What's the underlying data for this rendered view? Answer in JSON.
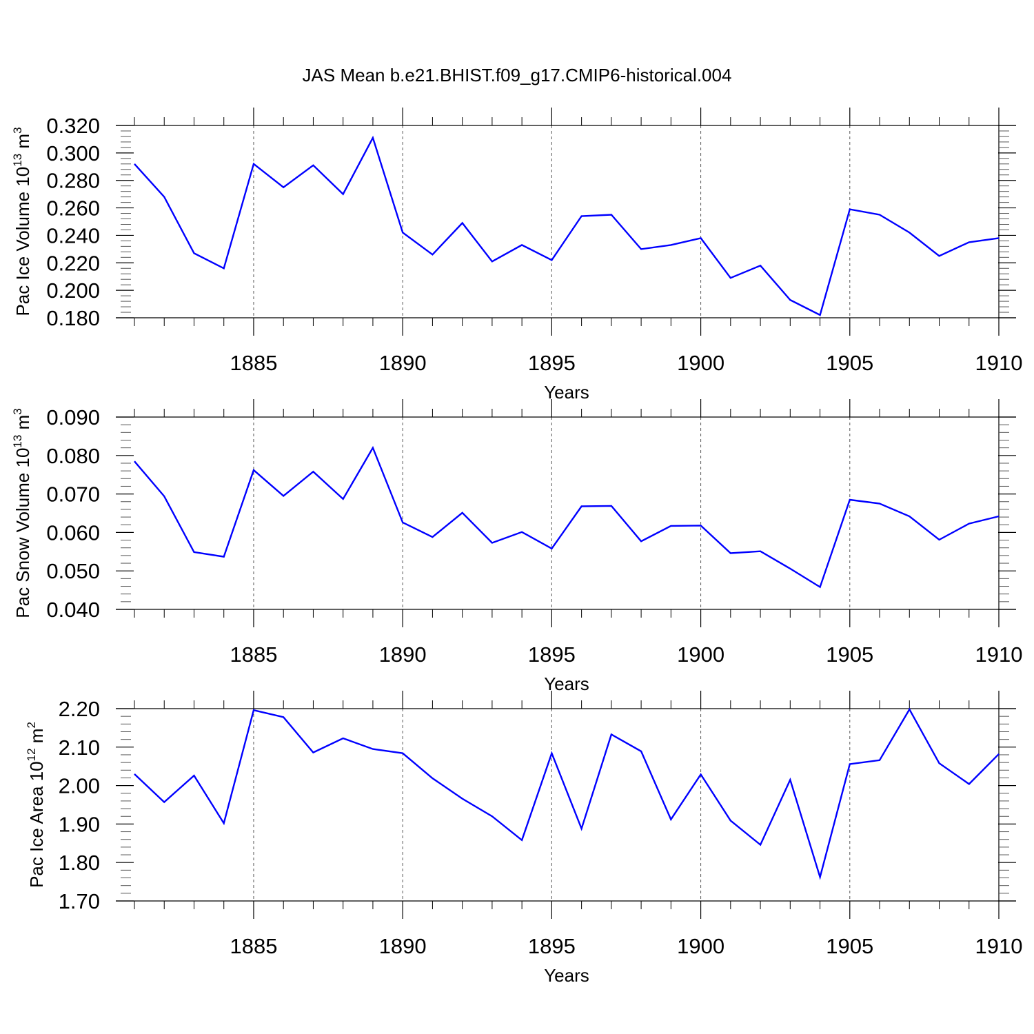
{
  "figure": {
    "title": "JAS Mean b.e21.BHIST.f09_g17.CMIP6-historical.004"
  },
  "chart_data": [
    {
      "type": "line",
      "title": "JAS Mean b.e21.BHIST.f09_g17.CMIP6-historical.004",
      "ylabel_main": "Pac Ice Volume 10",
      "ylabel_sup1": "13",
      "ylabel_mid": " m",
      "ylabel_sup2": "3",
      "xlabel": "Years",
      "xlim": [
        1881,
        1910
      ],
      "ylim": [
        0.18,
        0.32
      ],
      "yticks": [
        0.18,
        0.2,
        0.22,
        0.24,
        0.26,
        0.28,
        0.3,
        0.32
      ],
      "ytick_labels": [
        "0.180",
        "0.200",
        "0.220",
        "0.240",
        "0.260",
        "0.280",
        "0.300",
        "0.320"
      ],
      "xticks": [
        1885,
        1890,
        1895,
        1900,
        1905,
        1910
      ],
      "xtick_labels": [
        "1885",
        "1890",
        "1895",
        "1900",
        "1905",
        "1910"
      ],
      "grid": "vertical dashed at major x ticks",
      "line_color": "#0000ff",
      "x": [
        1881,
        1882,
        1883,
        1884,
        1885,
        1886,
        1887,
        1888,
        1889,
        1890,
        1891,
        1892,
        1893,
        1894,
        1895,
        1896,
        1897,
        1898,
        1899,
        1900,
        1901,
        1902,
        1903,
        1904,
        1905,
        1906,
        1907,
        1908,
        1909,
        1910
      ],
      "y": [
        0.292,
        0.268,
        0.227,
        0.216,
        0.292,
        0.275,
        0.291,
        0.27,
        0.311,
        0.242,
        0.226,
        0.249,
        0.221,
        0.233,
        0.222,
        0.254,
        0.255,
        0.23,
        0.233,
        0.238,
        0.209,
        0.218,
        0.193,
        0.182,
        0.259,
        0.255,
        0.242,
        0.225,
        0.235,
        0.238
      ]
    },
    {
      "type": "line",
      "ylabel_main": "Pac Snow Volume 10",
      "ylabel_sup1": "13",
      "ylabel_mid": " m",
      "ylabel_sup2": "3",
      "xlabel": "Years",
      "xlim": [
        1881,
        1910
      ],
      "ylim": [
        0.04,
        0.09
      ],
      "yticks": [
        0.04,
        0.05,
        0.06,
        0.07,
        0.08,
        0.09
      ],
      "ytick_labels": [
        "0.040",
        "0.050",
        "0.060",
        "0.070",
        "0.080",
        "0.090"
      ],
      "xticks": [
        1885,
        1890,
        1895,
        1900,
        1905,
        1910
      ],
      "xtick_labels": [
        "1885",
        "1890",
        "1895",
        "1900",
        "1905",
        "1910"
      ],
      "grid": "vertical dashed at major x ticks",
      "line_color": "#0000ff",
      "x": [
        1881,
        1882,
        1883,
        1884,
        1885,
        1886,
        1887,
        1888,
        1889,
        1890,
        1891,
        1892,
        1893,
        1894,
        1895,
        1896,
        1897,
        1898,
        1899,
        1900,
        1901,
        1902,
        1903,
        1904,
        1905,
        1906,
        1907,
        1908,
        1909,
        1910
      ],
      "y": [
        0.0785,
        0.0694,
        0.0549,
        0.0537,
        0.0762,
        0.0695,
        0.0758,
        0.0687,
        0.082,
        0.0626,
        0.0588,
        0.0651,
        0.0573,
        0.0601,
        0.0558,
        0.0668,
        0.0669,
        0.0577,
        0.0617,
        0.0618,
        0.0546,
        0.0551,
        0.0506,
        0.0458,
        0.0685,
        0.0675,
        0.0642,
        0.0581,
        0.0623,
        0.0642
      ]
    },
    {
      "type": "line",
      "ylabel_main": "Pac Ice Area 10",
      "ylabel_sup1": "12",
      "ylabel_mid": " m",
      "ylabel_sup2": "2",
      "xlabel": "Years",
      "xlim": [
        1881,
        1910
      ],
      "ylim": [
        1.7,
        2.2
      ],
      "yticks": [
        1.7,
        1.8,
        1.9,
        2.0,
        2.1,
        2.2
      ],
      "ytick_labels": [
        "1.70",
        "1.80",
        "1.90",
        "2.00",
        "2.10",
        "2.20"
      ],
      "xticks": [
        1885,
        1890,
        1895,
        1900,
        1905,
        1910
      ],
      "xtick_labels": [
        "1885",
        "1890",
        "1895",
        "1900",
        "1905",
        "1910"
      ],
      "grid": "vertical dashed at major x ticks",
      "line_color": "#0000ff",
      "x": [
        1881,
        1882,
        1883,
        1884,
        1885,
        1886,
        1887,
        1888,
        1889,
        1890,
        1891,
        1892,
        1893,
        1894,
        1895,
        1896,
        1897,
        1898,
        1899,
        1900,
        1901,
        1902,
        1903,
        1904,
        1905,
        1906,
        1907,
        1908,
        1909,
        1910
      ],
      "y": [
        2.03,
        1.957,
        2.026,
        1.902,
        2.196,
        2.178,
        2.086,
        2.123,
        2.095,
        2.084,
        2.019,
        1.966,
        1.92,
        1.858,
        2.084,
        1.888,
        2.133,
        2.089,
        1.912,
        2.029,
        1.909,
        1.846,
        2.015,
        1.762,
        2.056,
        2.066,
        2.198,
        2.058,
        2.004,
        2.082
      ]
    }
  ]
}
